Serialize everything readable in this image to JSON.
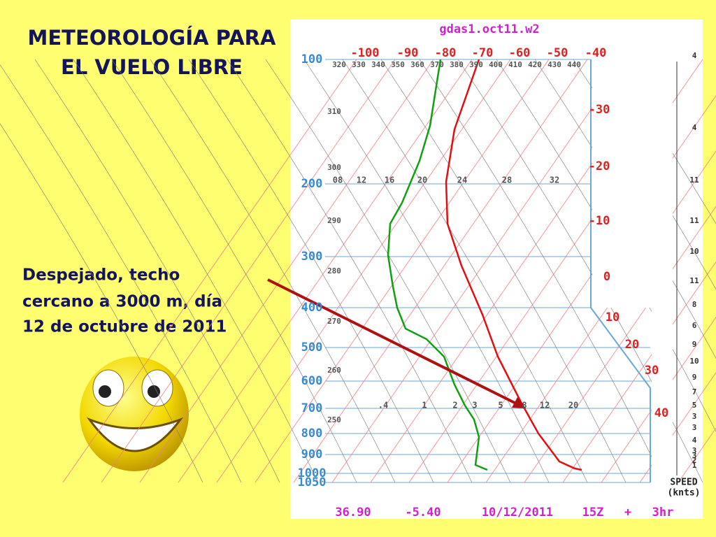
{
  "slide": {
    "title": [
      "METEOROLOGÍA PARA",
      "EL VUELO LIBRE"
    ],
    "caption": [
      "Despejado, techo",
      "cercano a 3000 m, día",
      "12 de octubre de 2011"
    ]
  },
  "sounding": {
    "header": "gdas1.oct11.w2",
    "pressure_labels": [
      "100",
      "200",
      "300",
      "400",
      "500",
      "600",
      "700",
      "800",
      "900",
      "1000",
      "1050"
    ],
    "top_temps": [
      "-100",
      "-90",
      "-80",
      "-70",
      "-60",
      "-50",
      "-40"
    ],
    "right_temps": [
      "-30",
      "-20",
      "-10",
      "0",
      "10",
      "20",
      "30",
      "40"
    ],
    "theta_row": [
      "320",
      "330",
      "340",
      "350",
      "360",
      "370",
      "380",
      "390",
      "400",
      "410",
      "420",
      "430",
      "440"
    ],
    "theta_left": [
      "310",
      "300",
      "290",
      "280",
      "270",
      "260",
      "250"
    ],
    "mixing_upper": [
      "08",
      "12",
      "16",
      "20",
      "24",
      "28",
      "32"
    ],
    "mixing_lower": [
      ".4",
      "1",
      "2",
      "3",
      "5",
      "8",
      "12",
      "20"
    ],
    "wind_speeds": [
      "4",
      "4",
      "11",
      "11",
      "10",
      "11",
      "8",
      "6",
      "9",
      "10",
      "9",
      "7",
      "5",
      "3",
      "3",
      "4",
      "3",
      "3",
      "2",
      "1"
    ],
    "speed_label": [
      "SPEED",
      "(knts)"
    ],
    "footer": [
      "36.90",
      "-5.40",
      "10/12/2011",
      "15Z",
      "+",
      "3hr"
    ]
  }
}
